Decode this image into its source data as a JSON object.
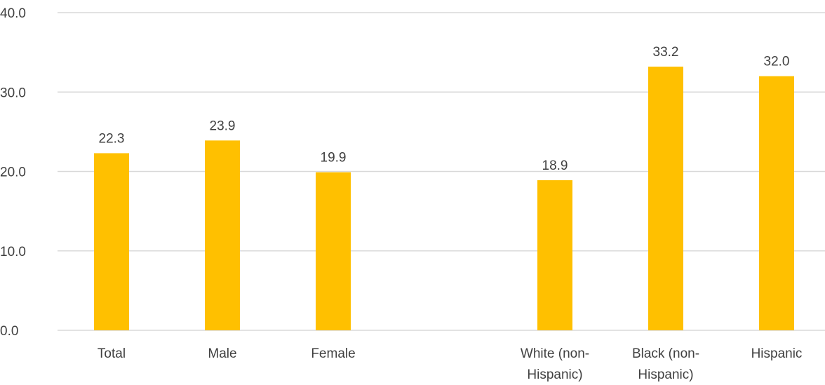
{
  "chart_data": {
    "type": "bar",
    "categories": [
      [
        "Total"
      ],
      [
        "Male"
      ],
      [
        "Female"
      ],
      [
        ""
      ],
      [
        "White (non-",
        "Hispanic)"
      ],
      [
        "Black (non-",
        "Hispanic)"
      ],
      [
        "Hispanic"
      ]
    ],
    "values": [
      22.3,
      23.9,
      19.9,
      null,
      18.9,
      33.2,
      32.0
    ],
    "value_labels": [
      "22.3",
      "23.9",
      "19.9",
      "",
      "18.9",
      "33.2",
      "32.0"
    ],
    "y_ticks": [
      "0.0",
      "10.0",
      "20.0",
      "30.0",
      "40.0"
    ],
    "ylim": [
      0,
      40
    ],
    "grid": true,
    "legend": "none",
    "bar_color": "#ffc000",
    "grid_color": "#d9d9d9",
    "text_color": "#404040"
  }
}
